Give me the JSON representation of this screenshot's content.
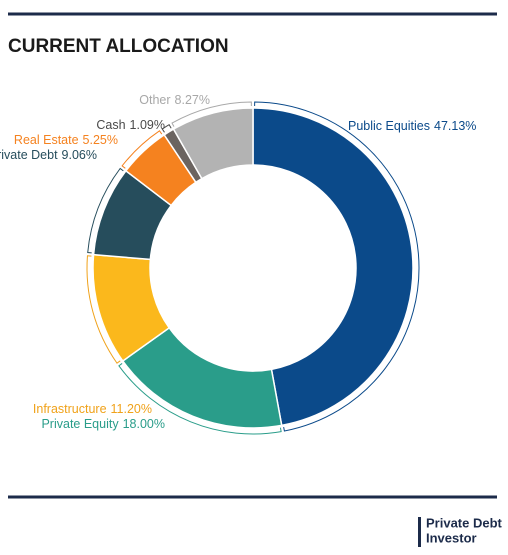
{
  "chart_data": {
    "type": "donut",
    "title": "CURRENT ALLOCATION",
    "categories": [
      "Public Equities",
      "Private Equity",
      "Infrastructure",
      "Private Debt",
      "Real Estate",
      "Cash",
      "Other"
    ],
    "values": [
      47.13,
      18.0,
      11.2,
      9.06,
      5.25,
      1.09,
      8.27
    ],
    "value_labels": [
      "47.13%",
      "18.00%",
      "11.20%",
      "9.06%",
      "5.25%",
      "1.09%",
      "8.27%"
    ],
    "colors": [
      "#0b4a8a",
      "#2a9d8a",
      "#fbb81c",
      "#264d5c",
      "#f5821f",
      "#6b6460",
      "#b3b3b3"
    ],
    "label_colors": [
      "#0b4a8a",
      "#2a9d8a",
      "#f0a21a",
      "#264d5c",
      "#f5821f",
      "#4a4a4a",
      "#a8a8a8"
    ]
  },
  "footer": {
    "brand_lines": [
      "Private Debt",
      "Investor"
    ]
  }
}
